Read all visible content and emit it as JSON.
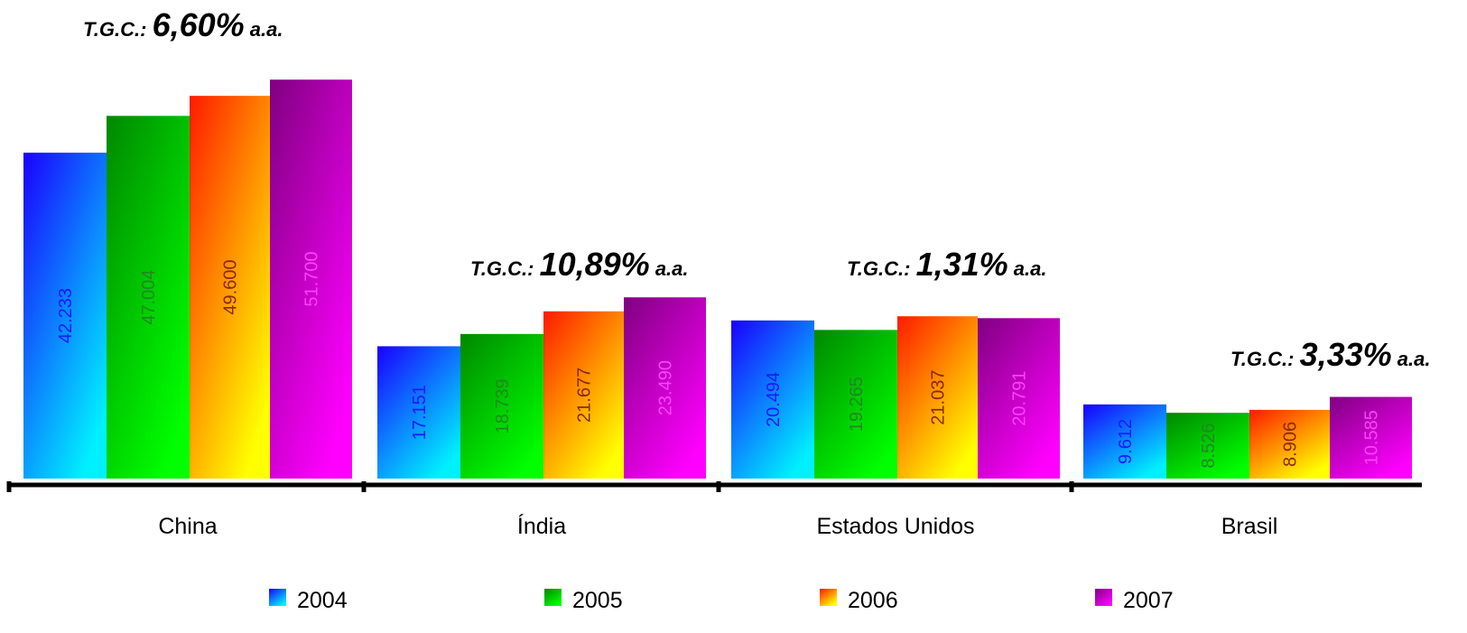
{
  "chart_data": {
    "type": "bar",
    "categories": [
      "China",
      "Índia",
      "Estados Unidos",
      "Brasil"
    ],
    "series": [
      {
        "name": "2004",
        "values": [
          42233,
          17151,
          20494,
          9612
        ],
        "value_labels": [
          "42.233",
          "17.151",
          "20.494",
          "9.612"
        ],
        "color_start": "#1a00ff",
        "color_end": "#00f0ff",
        "label_color": "#1a1aff"
      },
      {
        "name": "2005",
        "values": [
          47004,
          18739,
          19265,
          8526
        ],
        "value_labels": [
          "47.004",
          "18.739",
          "19.265",
          "8.526"
        ],
        "color_start": "#008800",
        "color_end": "#00ff00",
        "label_color": "#1e8a1e"
      },
      {
        "name": "2006",
        "values": [
          49600,
          21677,
          21037,
          8906
        ],
        "value_labels": [
          "49.600",
          "21.677",
          "21.037",
          "8.906"
        ],
        "color_start": "#ff1a00",
        "color_end": "#ffff00",
        "label_color": "#8a2a00"
      },
      {
        "name": "2007",
        "values": [
          51700,
          23490,
          20791,
          10585
        ],
        "value_labels": [
          "51.700",
          "23.490",
          "20.791",
          "10.585"
        ],
        "color_start": "#800080",
        "color_end": "#ff00ff",
        "label_color": "#ff40ff"
      }
    ],
    "annotations": [
      {
        "category": "China",
        "prefix": "T.G.C.:",
        "value": "6,60%",
        "suffix": "a.a."
      },
      {
        "category": "Índia",
        "prefix": "T.G.C.:",
        "value": "10,89%",
        "suffix": "a.a."
      },
      {
        "category": "Estados Unidos",
        "prefix": "T.G.C.:",
        "value": "1,31%",
        "suffix": "a.a."
      },
      {
        "category": "Brasil",
        "prefix": "T.G.C.:",
        "value": "3,33%",
        "suffix": "a.a."
      }
    ],
    "ylim": [
      0,
      55000
    ],
    "grid": false,
    "legend_position": "bottom",
    "title": "",
    "xlabel": "",
    "ylabel": ""
  }
}
